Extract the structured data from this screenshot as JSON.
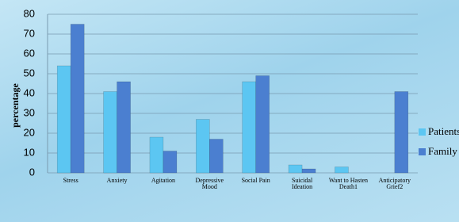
{
  "chart_data": {
    "type": "bar",
    "y_label": "percentage",
    "categories": [
      "Stress",
      "Anxiety",
      "Agitation",
      "Depressive Mood",
      "Social Pain",
      "Suicidal Ideation",
      "Want to Hasten Death1",
      "Anticipatory Grief2"
    ],
    "series": [
      {
        "name": "Patients",
        "color": "#5cc6f2",
        "values": [
          54,
          41,
          18,
          27,
          46,
          4,
          3,
          0
        ]
      },
      {
        "name": "Family",
        "color": "#4b7fd0",
        "values": [
          75,
          46,
          11,
          17,
          49,
          2,
          0,
          41
        ]
      }
    ],
    "ylim": [
      0,
      80
    ],
    "yticks": [
      0,
      10,
      20,
      30,
      40,
      50,
      60,
      70,
      80
    ],
    "grid": true
  }
}
